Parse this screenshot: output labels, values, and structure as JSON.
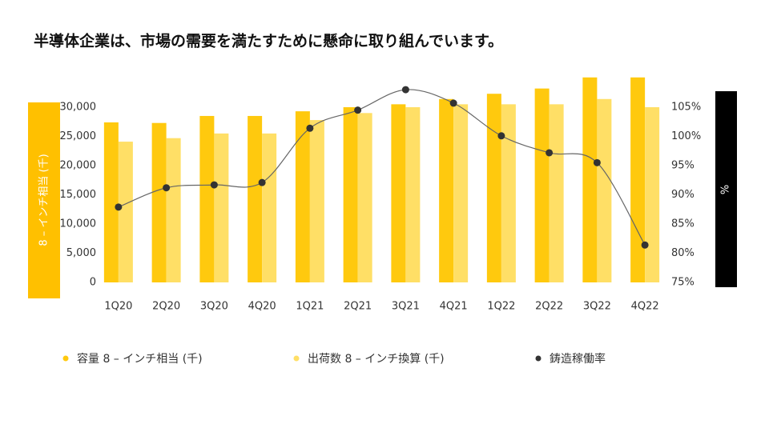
{
  "chart_data": {
    "type": "bar-line",
    "title": "半導体企業は、市場の需要を満たすために懸命に取り組んでいます。",
    "ylabel": "8 – インチ相当 (千)",
    "y2label": "%",
    "categories": [
      "1Q20",
      "2Q20",
      "3Q20",
      "4Q20",
      "1Q21",
      "2Q21",
      "3Q21",
      "4Q21",
      "1Q22",
      "2Q22",
      "3Q22",
      "4Q22"
    ],
    "series": [
      {
        "name": "容量 8 – インチ相当 (千)",
        "color": "#FFC90E",
        "type": "bar",
        "values": [
          27400,
          27300,
          28500,
          28500,
          29300,
          30000,
          30500,
          31400,
          32300,
          33200,
          35100,
          35100
        ]
      },
      {
        "name": "出荷数 8 – インチ換算 (千)",
        "color": "#FFDF66",
        "type": "bar",
        "values": [
          24100,
          24700,
          25500,
          25500,
          27800,
          29000,
          30000,
          30500,
          30500,
          30500,
          31400,
          30000
        ]
      },
      {
        "name": "鋳造稼働率",
        "color": "#333333",
        "type": "line",
        "axis": "y2",
        "values": [
          87.9,
          91.2,
          91.7,
          92.1,
          101.4,
          104.5,
          108.0,
          105.7,
          100.1,
          97.2,
          95.5,
          81.4
        ]
      }
    ],
    "ylim": [
      0,
      35000
    ],
    "yticks": [
      0,
      {
        "value": 5000,
        "label": "5,000"
      },
      {
        "value": 10000,
        "label": "10,000"
      },
      {
        "value": 15000,
        "label": "15,000"
      },
      {
        "value": 20000,
        "label": "20,000"
      },
      {
        "value": 25000,
        "label": "25,000"
      },
      {
        "value": 30000,
        "label": "30,000"
      }
    ],
    "y2lim": [
      75,
      110
    ],
    "y2ticks": [
      {
        "value": 75,
        "label": "75%"
      },
      {
        "value": 80,
        "label": "80%"
      },
      {
        "value": 85,
        "label": "85%"
      },
      {
        "value": 90,
        "label": "90%"
      },
      {
        "value": 95,
        "label": "95%"
      },
      {
        "value": 100,
        "label": "100%"
      },
      {
        "value": 105,
        "label": "105%"
      }
    ],
    "grid": false,
    "legend": "bottom"
  }
}
